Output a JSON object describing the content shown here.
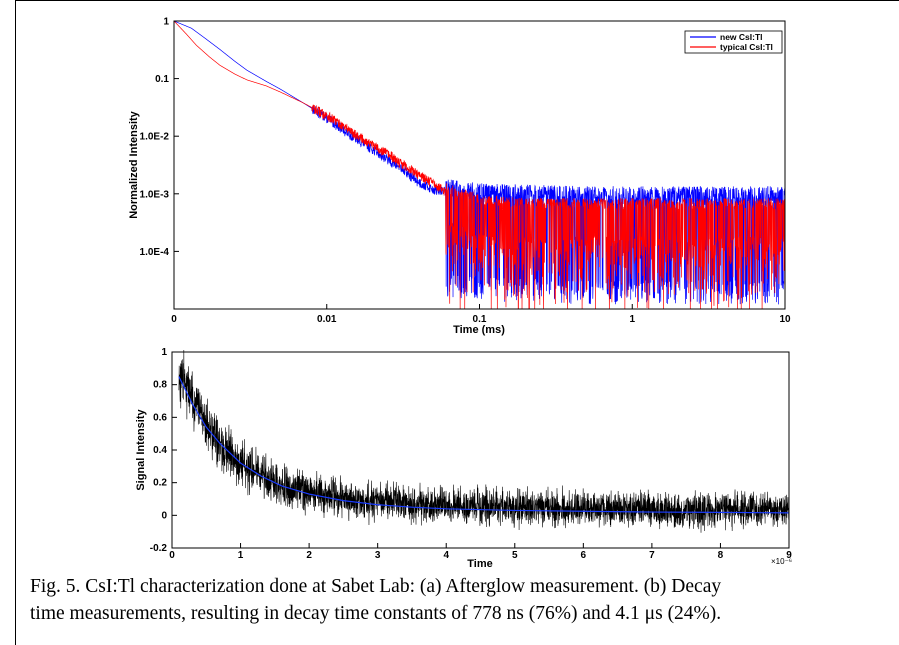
{
  "chart_data": [
    {
      "type": "line",
      "xscale": "log",
      "yscale": "log",
      "xlabel": "Time (ms)",
      "ylabel": "Normalized Intensity",
      "xlim": [
        0.001,
        10
      ],
      "ylim": [
        1e-05,
        1
      ],
      "x_ticks": [
        {
          "value": 0.001,
          "label": "0"
        },
        {
          "value": 0.01,
          "label": "0.01"
        },
        {
          "value": 0.1,
          "label": "0.1"
        },
        {
          "value": 1,
          "label": "1"
        },
        {
          "value": 10,
          "label": "10"
        }
      ],
      "y_ticks": [
        {
          "value": 1,
          "label": "1"
        },
        {
          "value": 0.1,
          "label": "0.1"
        },
        {
          "value": 0.01,
          "label": "1.0E-2"
        },
        {
          "value": 0.001,
          "label": "1.0E-3"
        },
        {
          "value": 0.0001,
          "label": "1.0E-4"
        }
      ],
      "legend_position": "top-right",
      "grid": false,
      "series": [
        {
          "name": "new CsI:Tl",
          "color": "#0000ff",
          "x": [
            0.001,
            0.0013,
            0.0016,
            0.002,
            0.0025,
            0.003,
            0.004,
            0.005,
            0.007,
            0.01,
            0.014,
            0.02,
            0.025,
            0.03,
            0.035,
            0.04,
            0.05,
            0.06,
            0.08,
            0.1,
            0.2,
            0.5,
            1,
            2,
            5,
            10
          ],
          "y": [
            1,
            0.75,
            0.5,
            0.32,
            0.2,
            0.14,
            0.09,
            0.065,
            0.038,
            0.021,
            0.011,
            0.006,
            0.004,
            0.0029,
            0.0021,
            0.0016,
            0.0012,
            0.0011,
            0.001,
            0.0009,
            0.00085,
            0.0008,
            0.0008,
            0.0008,
            0.0008,
            0.0008
          ]
        },
        {
          "name": "typical CsI:Tl",
          "color": "#ff0000",
          "x": [
            0.001,
            0.0012,
            0.0014,
            0.0017,
            0.002,
            0.0025,
            0.003,
            0.004,
            0.005,
            0.007,
            0.01,
            0.014,
            0.02,
            0.025,
            0.03,
            0.04,
            0.05,
            0.06,
            0.08,
            0.1,
            0.2,
            0.5,
            1,
            2,
            5,
            10
          ],
          "y": [
            1,
            0.6,
            0.38,
            0.24,
            0.17,
            0.12,
            0.095,
            0.075,
            0.058,
            0.038,
            0.023,
            0.013,
            0.007,
            0.005,
            0.0035,
            0.0022,
            0.0015,
            0.0011,
            0.0009,
            0.0007,
            0.0006,
            0.0006,
            0.0006,
            0.0006,
            0.0006,
            0.0006
          ]
        }
      ]
    },
    {
      "type": "scatter",
      "xlabel": "Time",
      "ylabel": "Signal Intensity",
      "x_multiplier": "×10⁻⁶",
      "xlim": [
        0,
        9
      ],
      "ylim": [
        -0.2,
        1
      ],
      "x_ticks": [
        0,
        1,
        2,
        3,
        4,
        5,
        6,
        7,
        8,
        9
      ],
      "y_ticks": [
        -0.2,
        0,
        0.2,
        0.4,
        0.6,
        0.8,
        1
      ],
      "grid": false,
      "series": [
        {
          "name": "",
          "color": "#000000",
          "x": [
            0.1,
            0.15,
            0.2,
            0.3,
            0.4,
            0.5,
            0.6,
            0.7,
            0.8,
            1.0,
            1.2,
            1.5,
            1.8,
            2.0,
            2.5,
            3.0,
            3.5,
            4.0,
            4.5,
            5.0,
            5.5,
            6.0,
            6.5,
            7.0,
            7.5,
            8.0,
            8.5,
            9.0
          ],
          "y": [
            0.8,
            0.82,
            0.8,
            0.72,
            0.63,
            0.56,
            0.5,
            0.44,
            0.4,
            0.32,
            0.27,
            0.2,
            0.16,
            0.14,
            0.1,
            0.08,
            0.07,
            0.06,
            0.055,
            0.05,
            0.045,
            0.04,
            0.04,
            0.035,
            0.035,
            0.03,
            0.03,
            0.03
          ]
        },
        {
          "name": "",
          "color": "#1a3cff",
          "x": [
            0.1,
            0.3,
            0.5,
            0.7,
            1.0,
            1.3,
            1.6,
            2.0,
            2.5,
            3.0,
            3.5,
            4.0,
            5.0,
            6.0,
            7.0,
            8.0,
            9.0
          ],
          "y": [
            0.85,
            0.68,
            0.54,
            0.44,
            0.32,
            0.24,
            0.18,
            0.13,
            0.09,
            0.065,
            0.05,
            0.04,
            0.03,
            0.025,
            0.02,
            0.018,
            0.015
          ]
        }
      ]
    }
  ],
  "caption": {
    "line1": "Fig. 5. CsI:Tl characterization done at Sabet Lab: (a) Afterglow measurement. (b) Decay",
    "line2": "time measurements, resulting in decay time constants of 778 ns (76%) and 4.1 μs (24%)."
  }
}
